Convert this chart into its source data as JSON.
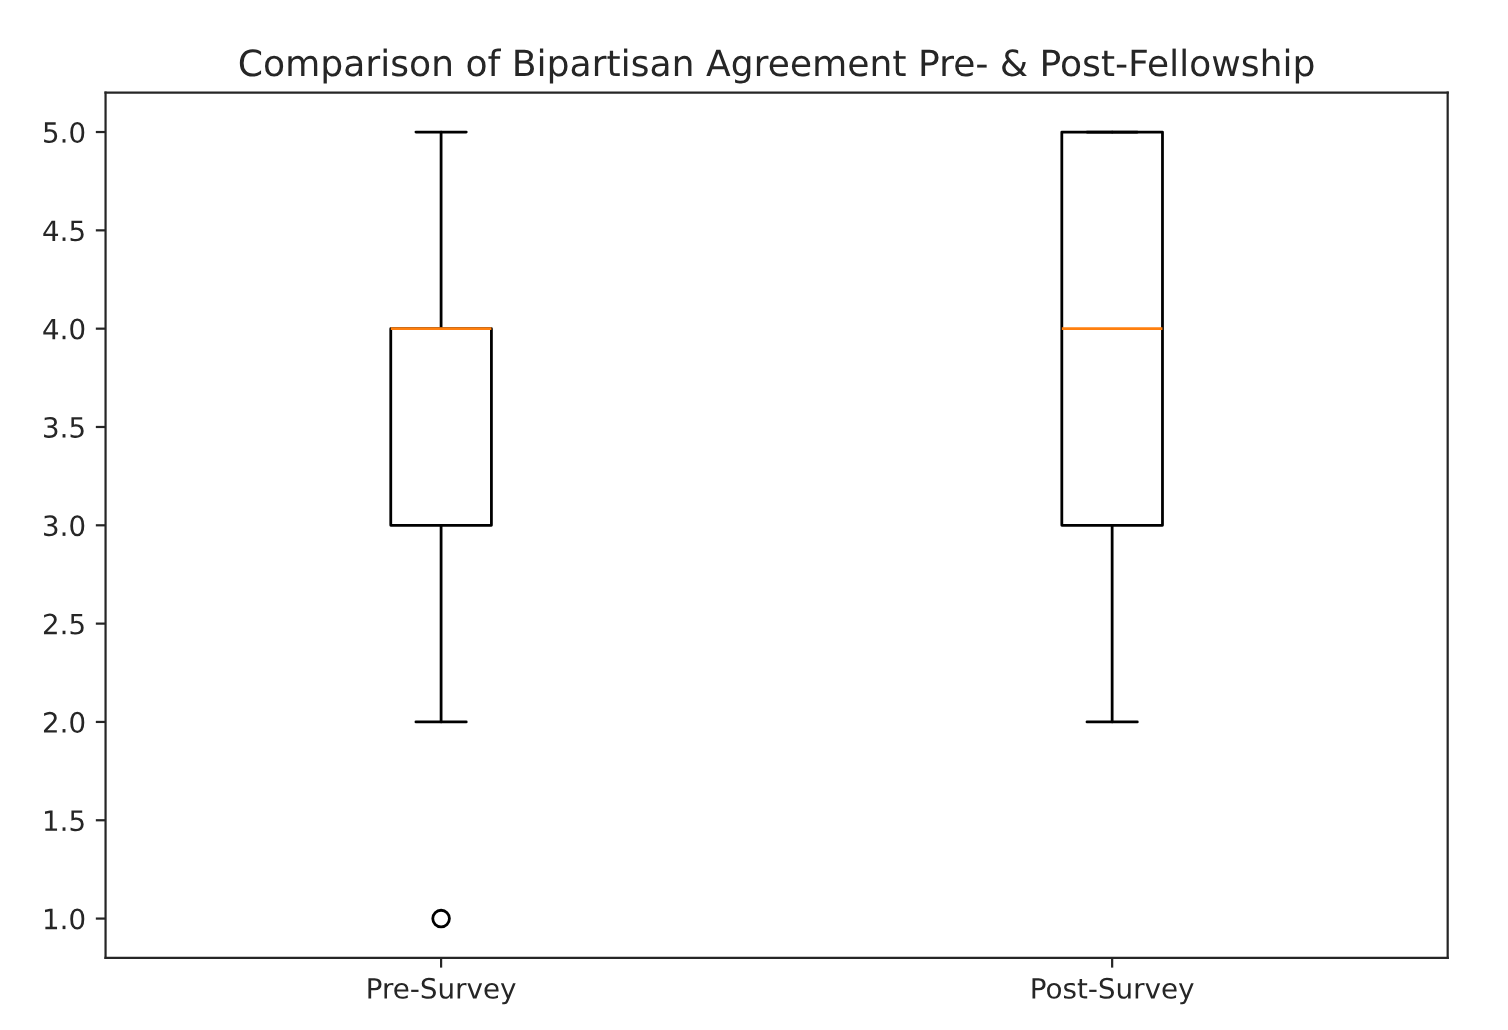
{
  "chart_data": {
    "type": "box",
    "title": "Comparison of Bipartisan Agreement Pre- & Post-Fellowship",
    "categories": [
      "Pre-Survey",
      "Post-Survey"
    ],
    "boxes": [
      {
        "low": 2.0,
        "q1": 3.0,
        "median": 4.0,
        "q3": 4.0,
        "high": 5.0,
        "outliers": [
          1.0
        ]
      },
      {
        "low": 2.0,
        "q1": 3.0,
        "median": 4.0,
        "q3": 5.0,
        "high": 5.0
      }
    ],
    "color": "#000000",
    "ylim": [
      0.8,
      5.2
    ],
    "yticks": [
      {
        "value": 1.0,
        "label": "1.0"
      },
      {
        "value": 1.5,
        "label": "1.5"
      },
      {
        "value": 2.0,
        "label": "2.0"
      },
      {
        "value": 2.5,
        "label": "2.5"
      },
      {
        "value": 3.0,
        "label": "3.0"
      },
      {
        "value": 3.5,
        "label": "3.5"
      },
      {
        "value": 4.0,
        "label": "4.0"
      },
      {
        "value": 4.5,
        "label": "4.5"
      },
      {
        "value": 5.0,
        "label": "5.0"
      }
    ],
    "grid": false
  }
}
